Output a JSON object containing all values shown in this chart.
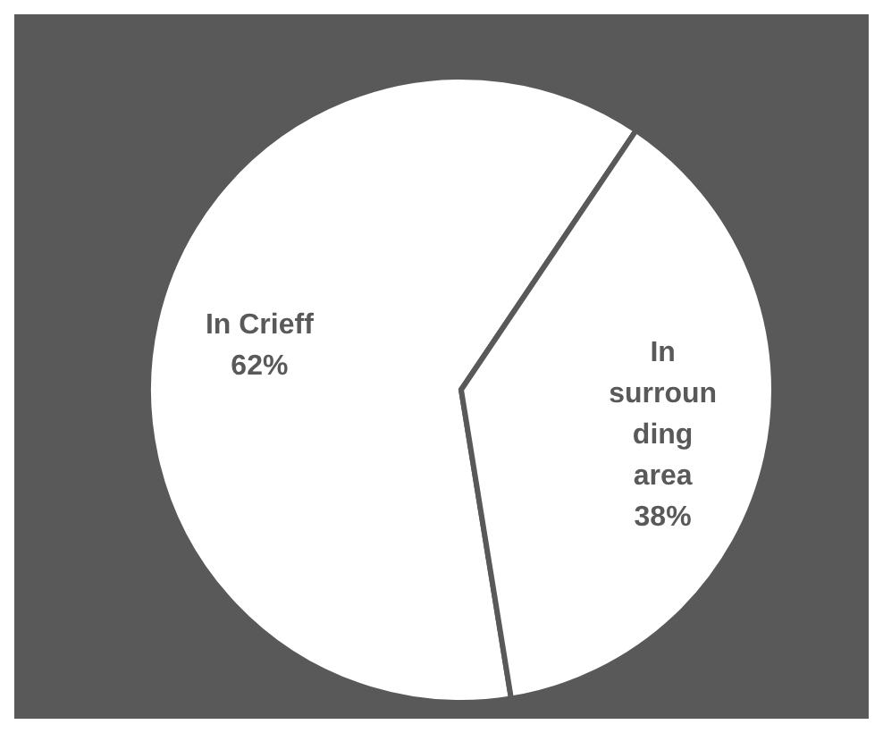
{
  "chart_data": {
    "type": "pie",
    "categories": [
      "In Crieff",
      "In surrounding area"
    ],
    "values": [
      62,
      38
    ],
    "value_labels": [
      "62%",
      "38%"
    ],
    "colors": [
      "#ffffff",
      "#ffffff"
    ],
    "legend": false
  }
}
